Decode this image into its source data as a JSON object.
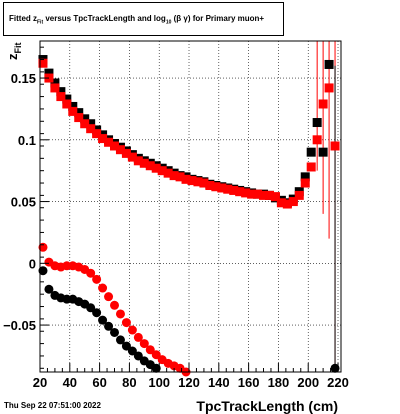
{
  "title": {
    "prefix": "Fitted  z",
    "sub1": "Fit",
    "mid": "  versus TpcTrackLength and log",
    "sub2": "10",
    "suffix": " (β  γ) for Primary muon+"
  },
  "footer": {
    "timestamp": "Thu Sep 22 07:51:00 2022"
  },
  "chart_data": {
    "type": "scatter",
    "title": "Fitted zFit versus TpcTrackLength and log10 (β γ) for Primary muon+",
    "xlabel": "TpcTrackLength (cm)",
    "ylabel": "z",
    "ylabel_sub": "Fit",
    "xlim": [
      20,
      222
    ],
    "ylim": [
      -0.088,
      0.18
    ],
    "x_ticks": [
      20,
      40,
      60,
      80,
      100,
      120,
      140,
      160,
      180,
      200,
      220
    ],
    "y_ticks": [
      -0.05,
      0,
      0.05,
      0.1,
      0.15
    ],
    "y_tick_labels": [
      "−0.05",
      "0",
      "0.05",
      "0.1",
      "0.15"
    ],
    "grid": true,
    "series": [
      {
        "color": "#000000",
        "marker": "square",
        "x": [
          22,
          26,
          30,
          34,
          38,
          42,
          46,
          50,
          54,
          58,
          62,
          66,
          70,
          74,
          78,
          82,
          86,
          90,
          94,
          98,
          102,
          106,
          110,
          114,
          118,
          122,
          126,
          130,
          134,
          138,
          142,
          146,
          150,
          154,
          158,
          162,
          166,
          170,
          174,
          178,
          182,
          186,
          190,
          194,
          198,
          202,
          206,
          210,
          214
        ],
        "y": [
          0.165,
          0.154,
          0.146,
          0.139,
          0.133,
          0.127,
          0.122,
          0.117,
          0.113,
          0.108,
          0.104,
          0.1,
          0.097,
          0.094,
          0.091,
          0.088,
          0.085,
          0.083,
          0.081,
          0.079,
          0.077,
          0.075,
          0.073,
          0.071,
          0.07,
          0.068,
          0.067,
          0.066,
          0.064,
          0.063,
          0.062,
          0.061,
          0.06,
          0.059,
          0.058,
          0.057,
          0.056,
          0.056,
          0.055,
          0.053,
          0.051,
          0.049,
          0.052,
          0.058,
          0.07,
          0.09,
          0.114,
          0.09,
          0.161
        ]
      },
      {
        "color": "#ff0000",
        "marker": "square",
        "x": [
          22,
          26,
          30,
          34,
          38,
          42,
          46,
          50,
          54,
          58,
          62,
          66,
          70,
          74,
          78,
          82,
          86,
          90,
          94,
          98,
          102,
          106,
          110,
          114,
          118,
          122,
          126,
          130,
          134,
          138,
          142,
          146,
          150,
          154,
          158,
          162,
          166,
          170,
          174,
          178,
          182,
          186,
          190,
          194,
          198,
          202,
          206,
          210,
          214,
          218
        ],
        "y": [
          0.162,
          0.15,
          0.142,
          0.135,
          0.129,
          0.123,
          0.118,
          0.113,
          0.109,
          0.105,
          0.101,
          0.098,
          0.095,
          0.092,
          0.089,
          0.086,
          0.083,
          0.081,
          0.079,
          0.077,
          0.075,
          0.073,
          0.071,
          0.07,
          0.068,
          0.067,
          0.066,
          0.065,
          0.063,
          0.062,
          0.061,
          0.06,
          0.059,
          0.058,
          0.057,
          0.056,
          0.056,
          0.055,
          0.055,
          0.054,
          0.049,
          0.048,
          0.05,
          0.055,
          0.065,
          0.078,
          0.1,
          0.129,
          0.142,
          0.095
        ]
      },
      {
        "color": "#ff0000",
        "marker": "circle",
        "x": [
          22,
          26,
          30,
          34,
          38,
          42,
          46,
          50,
          54,
          58,
          62,
          66,
          70,
          74,
          78,
          82,
          86,
          90,
          94,
          98,
          102,
          106,
          110,
          114,
          118
        ],
        "y": [
          0.013,
          0.001,
          -0.002,
          -0.003,
          -0.002,
          -0.002,
          -0.003,
          -0.005,
          -0.008,
          -0.013,
          -0.02,
          -0.027,
          -0.034,
          -0.041,
          -0.048,
          -0.054,
          -0.06,
          -0.065,
          -0.07,
          -0.074,
          -0.078,
          -0.081,
          -0.083,
          -0.085,
          -0.088
        ]
      },
      {
        "color": "#000000",
        "marker": "circle",
        "x": [
          22,
          26,
          30,
          34,
          38,
          42,
          46,
          50,
          54,
          58,
          62,
          66,
          70,
          74,
          78,
          82,
          86,
          90,
          94,
          98,
          218
        ],
        "y": [
          -0.006,
          -0.021,
          -0.026,
          -0.028,
          -0.029,
          -0.029,
          -0.031,
          -0.033,
          -0.036,
          -0.04,
          -0.046,
          -0.051,
          -0.056,
          -0.062,
          -0.067,
          -0.071,
          -0.075,
          -0.079,
          -0.082,
          -0.085,
          -0.085
        ]
      }
    ]
  }
}
